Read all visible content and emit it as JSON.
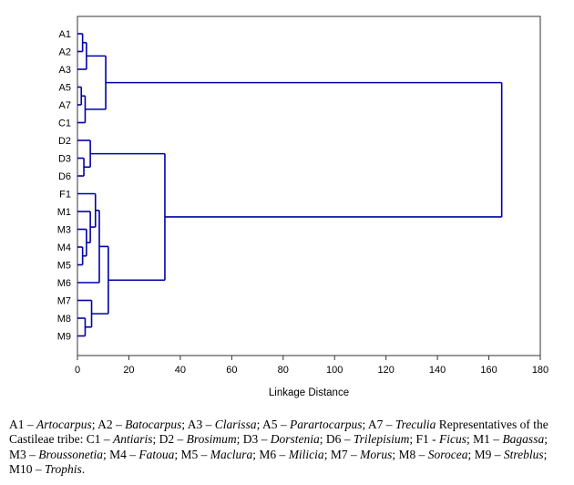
{
  "chart_data": {
    "type": "dendrogram",
    "title": "",
    "xlabel": "Linkage Distance",
    "xlim": [
      0,
      180
    ],
    "xticks": [
      0,
      20,
      40,
      60,
      80,
      100,
      120,
      140,
      160,
      180
    ],
    "grid": false,
    "line_color": "#0000AA",
    "axis_color": "#333333",
    "leaves": [
      "A1",
      "A2",
      "A3",
      "A5",
      "A7",
      "C1",
      "D2",
      "D3",
      "D6",
      "F1",
      "M1",
      "M3",
      "M4",
      "M5",
      "M6",
      "M7",
      "M8",
      "M9"
    ],
    "merges": [
      {
        "id": "c1",
        "a": "A1",
        "b": "A2",
        "d": 2
      },
      {
        "id": "c2",
        "a": "c1",
        "b": "A3",
        "d": 3.5
      },
      {
        "id": "c3",
        "a": "A5",
        "b": "A7",
        "d": 1.5
      },
      {
        "id": "c4",
        "a": "c3",
        "b": "C1",
        "d": 3
      },
      {
        "id": "c5",
        "a": "c2",
        "b": "c4",
        "d": 11
      },
      {
        "id": "c6",
        "a": "D3",
        "b": "D6",
        "d": 2.5
      },
      {
        "id": "c7",
        "a": "D2",
        "b": "c6",
        "d": 5
      },
      {
        "id": "c8",
        "a": "M4",
        "b": "M5",
        "d": 2
      },
      {
        "id": "c9",
        "a": "M3",
        "b": "c8",
        "d": 3.5
      },
      {
        "id": "c10",
        "a": "M1",
        "b": "c9",
        "d": 5
      },
      {
        "id": "c11",
        "a": "F1",
        "b": "c10",
        "d": 7
      },
      {
        "id": "c12",
        "a": "M8",
        "b": "M9",
        "d": 3
      },
      {
        "id": "c13",
        "a": "M7",
        "b": "c12",
        "d": 5.5
      },
      {
        "id": "c14",
        "a": "c11",
        "b": "M6",
        "d": 8.5
      },
      {
        "id": "c15",
        "a": "c14",
        "b": "c13",
        "d": 12
      },
      {
        "id": "c16",
        "a": "c7",
        "b": "c15",
        "d": 34
      },
      {
        "id": "c17",
        "a": "c5",
        "b": "c16",
        "d": 165
      }
    ]
  },
  "caption": {
    "segments": [
      {
        "t": "A1 – "
      },
      {
        "t": "Artocarpus",
        "i": true
      },
      {
        "t": "; A2 – "
      },
      {
        "t": "Batocarpus",
        "i": true
      },
      {
        "t": "; A3 – "
      },
      {
        "t": "Clarissa",
        "i": true
      },
      {
        "t": "; A5 – "
      },
      {
        "t": "Parartocarpus",
        "i": true
      },
      {
        "t": "; A7 – "
      },
      {
        "t": "Treculia",
        "i": true
      },
      {
        "t": " Representatives of the Castileae tribe: C1 – "
      },
      {
        "t": "Antiaris",
        "i": true
      },
      {
        "t": "; D2 – "
      },
      {
        "t": "Brosimum",
        "i": true
      },
      {
        "t": "; D3 – "
      },
      {
        "t": "Dorstenia",
        "i": true
      },
      {
        "t": "; D6 – "
      },
      {
        "t": "Trilepisium",
        "i": true
      },
      {
        "t": "; F1 - "
      },
      {
        "t": "Ficus",
        "i": true
      },
      {
        "t": "; M1 – "
      },
      {
        "t": "Bagassa",
        "i": true
      },
      {
        "t": "; M3 – "
      },
      {
        "t": "Broussonetia",
        "i": true
      },
      {
        "t": "; M4 – "
      },
      {
        "t": "Fatoua",
        "i": true
      },
      {
        "t": "; M5 – "
      },
      {
        "t": "Maclura",
        "i": true
      },
      {
        "t": "; M6 – "
      },
      {
        "t": "Milicia",
        "i": true
      },
      {
        "t": "; M7 – "
      },
      {
        "t": "Morus",
        "i": true
      },
      {
        "t": "; M8 – "
      },
      {
        "t": "Sorocea",
        "i": true
      },
      {
        "t": "; M9 – "
      },
      {
        "t": "Streblus",
        "i": true
      },
      {
        "t": "; M10 – "
      },
      {
        "t": "Trophis",
        "i": true
      },
      {
        "t": "."
      }
    ]
  }
}
